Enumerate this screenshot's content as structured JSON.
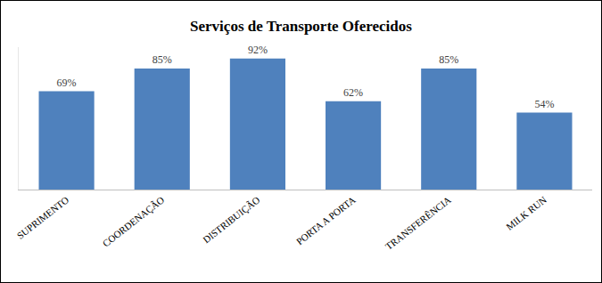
{
  "chart_data": {
    "type": "bar",
    "title": "Serviços de Transporte Oferecidos",
    "categories": [
      "SUPRIMENTO",
      "COORDENAÇÃO",
      "DISTRIBUIÇÃO",
      "PORTA A PORTA",
      "TRANSFERÊNCIA",
      "MILK RUN"
    ],
    "values": [
      69,
      85,
      92,
      62,
      85,
      54
    ],
    "value_labels": [
      "69%",
      "85%",
      "92%",
      "62%",
      "85%",
      "54%"
    ],
    "color": "#4f81bd",
    "ylim": [
      0,
      100
    ],
    "grid": false,
    "data_labels": true,
    "tick_labels": "x"
  }
}
